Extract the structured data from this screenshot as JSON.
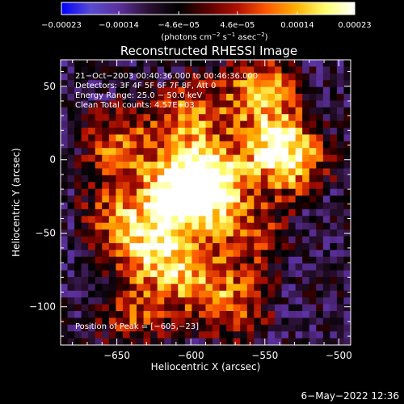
{
  "chart_data": {
    "type": "heatmap",
    "title": "Reconstructed RHESSI Image",
    "xlabel": "Heliocentric X (arcsec)",
    "ylabel": "Heliocentric Y (arcsec)",
    "xlim": [
      -688,
      -492
    ],
    "ylim": [
      -126,
      68
    ],
    "xticks": [
      -650,
      -600,
      -550,
      -500
    ],
    "yticks": [
      50,
      0,
      -50,
      -100
    ],
    "xtick_labels": [
      "−650",
      "−600",
      "−550",
      "−500"
    ],
    "ytick_labels": [
      "50",
      "0",
      "−50",
      "−100"
    ],
    "colorbar": {
      "min": -0.00023,
      "max": 0.00023,
      "ticks": [
        -0.00023,
        -0.00014,
        -4.6e-05,
        4.6e-05,
        0.00014,
        0.00023
      ],
      "tick_labels": [
        "−0.00023",
        "−0.00014",
        "−4.6e−05",
        "4.6e−05",
        "0.00014",
        "0.00023"
      ],
      "unit_label": {
        "open": "(photons cm",
        "exp1": "−2",
        "mid1": " s",
        "exp2": "−1",
        "mid2": " asec",
        "exp3": "−2",
        "close": ")"
      }
    },
    "colormap": {
      "stops": [
        "#0000ff",
        "#5a4bd0",
        "#5a2f9a",
        "#2a1030",
        "#000000",
        "#5a0000",
        "#b01000",
        "#ff5a00",
        "#ffb000",
        "#ffff70",
        "#ffffff"
      ]
    },
    "grid": false,
    "cells": {
      "cols": 42,
      "rows": 42,
      "hot_spots": [
        {
          "x": -605,
          "y": -23,
          "w": 1.0
        },
        {
          "x": -588,
          "y": -15,
          "w": 0.75
        },
        {
          "x": -648,
          "y": 10,
          "w": 0.6
        },
        {
          "x": -552,
          "y": 48,
          "w": 0.7
        },
        {
          "x": -545,
          "y": 8,
          "w": 0.55
        },
        {
          "x": -600,
          "y": 30,
          "w": 0.6
        },
        {
          "x": -530,
          "y": 0,
          "w": 0.55
        },
        {
          "x": -625,
          "y": -60,
          "w": 0.65
        },
        {
          "x": -600,
          "y": -80,
          "w": 0.55
        },
        {
          "x": -570,
          "y": -100,
          "w": 0.5
        },
        {
          "x": -640,
          "y": -105,
          "w": 0.45
        },
        {
          "x": -560,
          "y": -50,
          "w": 0.45
        },
        {
          "x": -650,
          "y": -40,
          "w": 0.5
        }
      ]
    },
    "annotations": [
      "21−Oct−2003 00:40:36.000 to 00:46:36.000",
      "Detectors: 3F 4F 5F 6F 7F 8F, Att 0",
      "Energy Range: 25.0 − 50.0 keV",
      "Clean     Total counts: 4.57E+03",
      "Position of Peak = [−605,−23]"
    ],
    "peak": {
      "x": -605,
      "y": -23
    }
  },
  "footer": {
    "date": "6−May−2022 12:36"
  }
}
